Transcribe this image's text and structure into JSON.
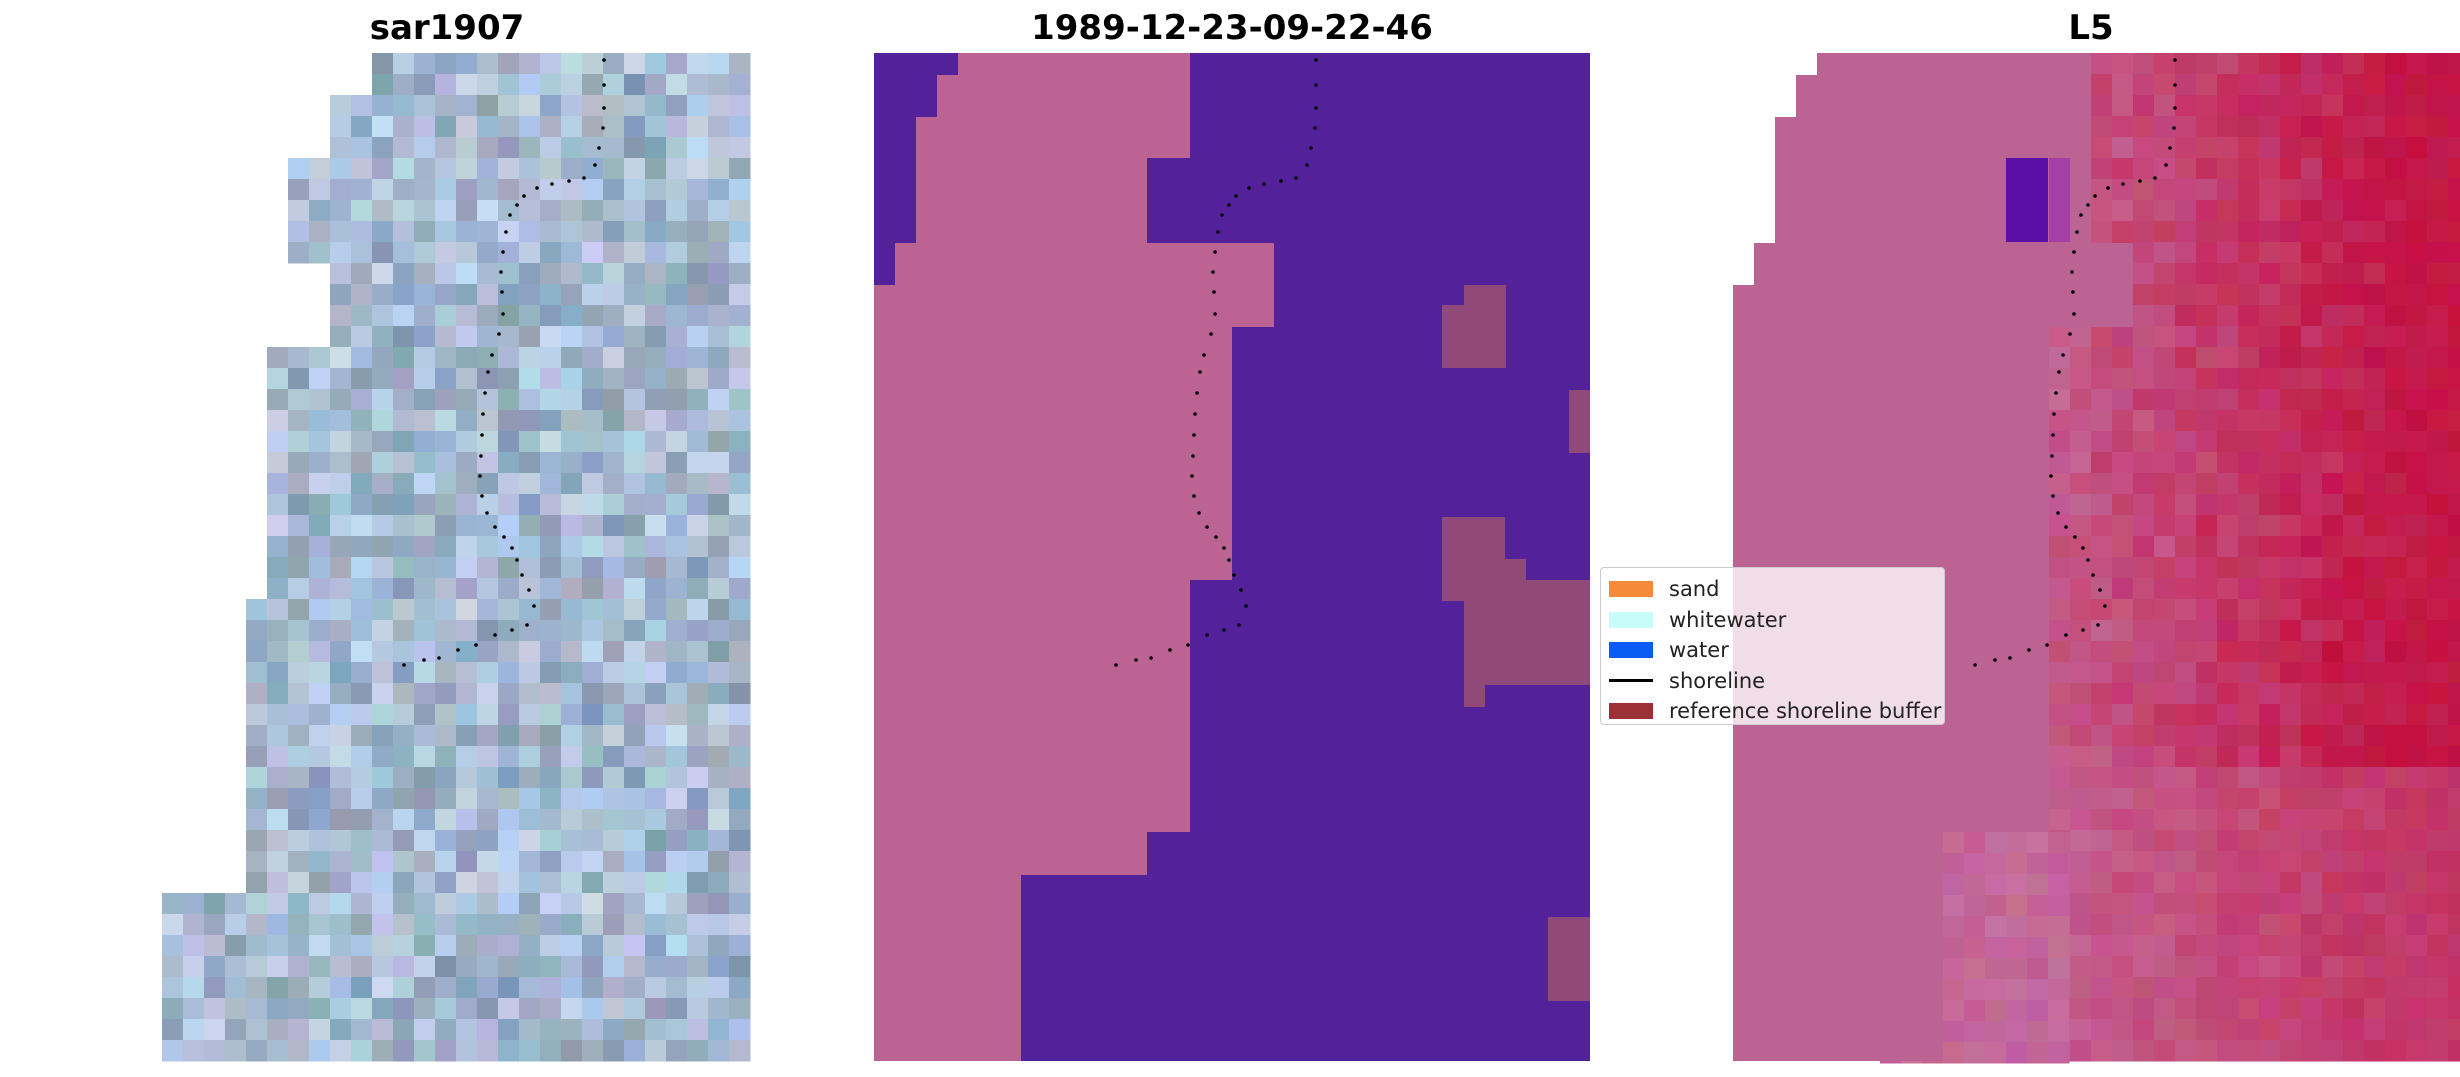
{
  "panels": [
    {
      "title": "sar1907",
      "kind": "rgb"
    },
    {
      "title": "1989-12-23-09-22-46",
      "kind": "classified"
    },
    {
      "title": "L5",
      "kind": "index"
    }
  ],
  "legend": {
    "items": [
      {
        "label": "sand",
        "color": "#f58a3a",
        "kind": "patch"
      },
      {
        "label": "whitewater",
        "color": "#c8fcfa",
        "kind": "patch"
      },
      {
        "label": "water",
        "color": "#0a5cf5",
        "kind": "patch"
      },
      {
        "label": "shoreline",
        "color": "#000000",
        "kind": "line"
      },
      {
        "label": "reference shoreline buffer",
        "color": "#9b3037",
        "kind": "patch"
      }
    ]
  },
  "colors": {
    "mask": "#bb6393",
    "water_class": "#53229a",
    "buffer_overlay": "#8f4a7a",
    "index_high": "#c0113c",
    "index_purple": "#5c0fa6",
    "shoreline": "#000000"
  }
}
